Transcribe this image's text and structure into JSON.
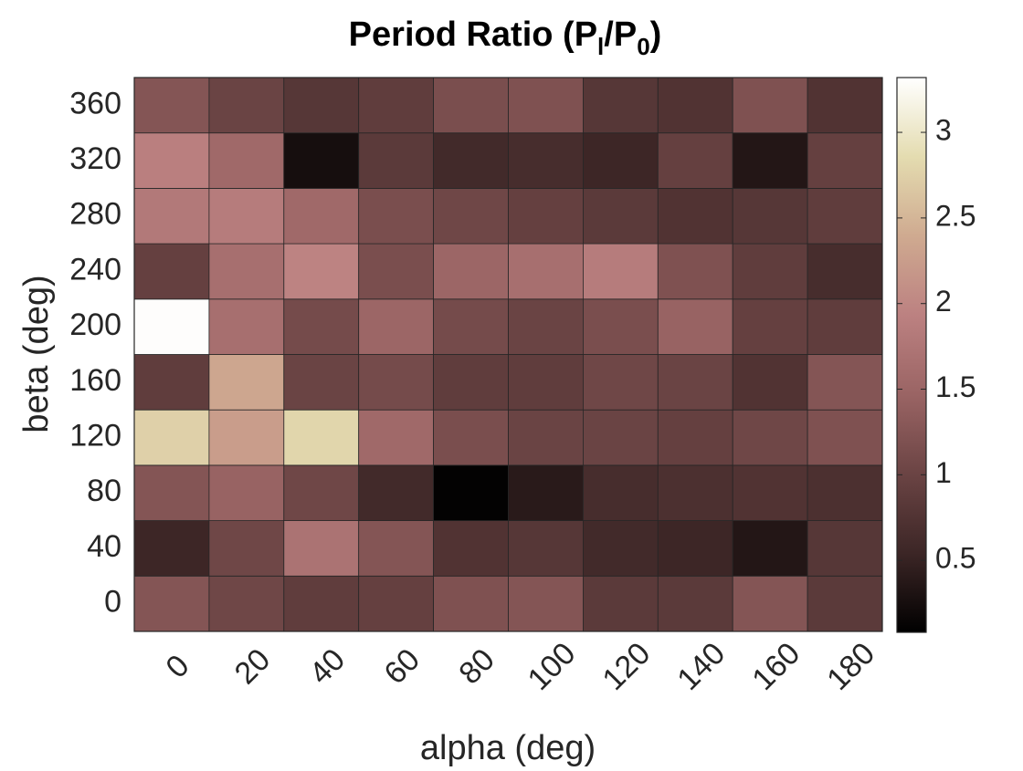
{
  "chart_data": {
    "type": "heatmap",
    "title": {
      "main": "Period Ratio (P",
      "sub1": "l",
      "mid": "/P",
      "sub2": "0",
      "end": ")"
    },
    "xlabel": "alpha (deg)",
    "ylabel": "beta (deg)",
    "x_categories": [
      "0",
      "20",
      "40",
      "60",
      "80",
      "100",
      "120",
      "140",
      "160",
      "180"
    ],
    "y_categories": [
      "0",
      "40",
      "80",
      "120",
      "160",
      "200",
      "240",
      "280",
      "320",
      "360"
    ],
    "values": [
      [
        1.25,
        1.05,
        0.9,
        0.95,
        1.2,
        1.25,
        0.85,
        0.85,
        1.25,
        0.85
      ],
      [
        0.55,
        1.05,
        1.7,
        1.25,
        0.75,
        0.8,
        0.6,
        0.55,
        0.35,
        0.8
      ],
      [
        1.25,
        1.45,
        1.05,
        0.6,
        0.1,
        0.4,
        0.65,
        0.7,
        0.75,
        0.7
      ],
      [
        2.75,
        2.25,
        2.8,
        1.55,
        1.15,
        1.0,
        1.0,
        0.95,
        1.05,
        1.2
      ],
      [
        0.9,
        2.35,
        1.0,
        1.1,
        0.9,
        0.9,
        1.05,
        1.0,
        0.75,
        1.25
      ],
      [
        3.3,
        1.65,
        1.1,
        1.5,
        1.1,
        1.0,
        1.15,
        1.45,
        0.95,
        0.9
      ],
      [
        0.95,
        1.65,
        1.95,
        1.15,
        1.5,
        1.65,
        1.85,
        1.2,
        0.9,
        0.65
      ],
      [
        1.8,
        1.85,
        1.55,
        1.15,
        1.05,
        0.95,
        0.85,
        0.75,
        0.8,
        0.9
      ],
      [
        1.9,
        1.55,
        0.25,
        0.85,
        0.6,
        0.65,
        0.55,
        0.95,
        0.35,
        0.95
      ],
      [
        1.25,
        1.0,
        0.8,
        0.9,
        1.15,
        1.2,
        0.8,
        0.75,
        1.2,
        0.75
      ]
    ],
    "colorbar": {
      "min": 0.08,
      "max": 3.32,
      "ticks": [
        0.5,
        1,
        1.5,
        2,
        2.5,
        3
      ],
      "tick_labels": [
        "0.5",
        "1",
        "1.5",
        "2",
        "2.5",
        "3"
      ]
    },
    "colormap_stops": [
      "#000000",
      "#3c2626",
      "#6b4444",
      "#9a6464",
      "#bc8181",
      "#cfaa90",
      "#e4dcb0",
      "#ffffff"
    ],
    "grid": false
  }
}
